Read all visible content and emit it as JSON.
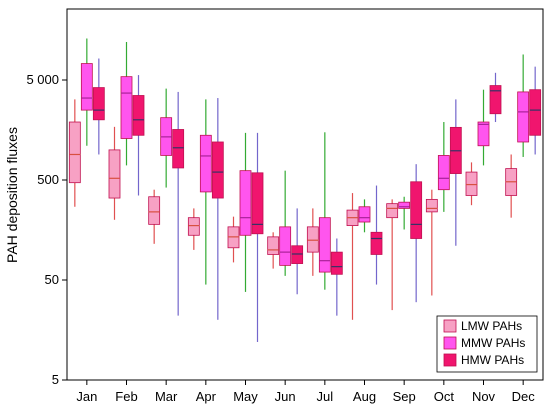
{
  "chart_data": {
    "type": "boxplot",
    "title": "",
    "xlabel": "",
    "ylabel": "PAH deposition fluxes",
    "yscale": "log",
    "ylim": [
      5,
      20000
    ],
    "yticks": [
      5,
      50,
      500,
      5000
    ],
    "ytick_labels": [
      "5",
      "50",
      "500",
      "5 000"
    ],
    "categories": [
      "Jan",
      "Feb",
      "Mar",
      "Apr",
      "May",
      "Jun",
      "Jul",
      "Aug",
      "Sep",
      "Oct",
      "Nov",
      "Dec"
    ],
    "legend": {
      "position": "bottom-right"
    },
    "series": [
      {
        "name": "LMW PAHs",
        "fill": "#f7a1c4",
        "whisker_color": "#e05050",
        "median_color": "#d85040",
        "boxes": [
          {
            "min": 270,
            "q1": 470,
            "median": 900,
            "q3": 1900,
            "max": 3200
          },
          {
            "min": 200,
            "q1": 330,
            "median": 520,
            "q3": 1000,
            "max": 1700
          },
          {
            "min": 115,
            "q1": 180,
            "median": 240,
            "q3": 340,
            "max": 400
          },
          {
            "min": 100,
            "q1": 140,
            "median": 175,
            "q3": 210,
            "max": 260
          },
          {
            "min": 75,
            "q1": 105,
            "median": 135,
            "q3": 170,
            "max": 215
          },
          {
            "min": 65,
            "q1": 90,
            "median": 100,
            "q3": 135,
            "max": 150
          },
          {
            "min": 55,
            "q1": 95,
            "median": 125,
            "q3": 170,
            "max": 260
          },
          {
            "min": 20,
            "q1": 175,
            "median": 210,
            "q3": 250,
            "max": 370
          },
          {
            "min": 25,
            "q1": 210,
            "median": 260,
            "q3": 290,
            "max": 320
          },
          {
            "min": 35,
            "q1": 240,
            "median": 260,
            "q3": 320,
            "max": 400
          },
          {
            "min": 280,
            "q1": 350,
            "median": 450,
            "q3": 600,
            "max": 750
          },
          {
            "min": 210,
            "q1": 350,
            "median": 480,
            "q3": 650,
            "max": 900
          }
        ]
      },
      {
        "name": "MMW PAHs",
        "fill": "#ff55ee",
        "whisker_color": "#33aa33",
        "median_color": "#aa2299",
        "boxes": [
          {
            "min": 1100,
            "q1": 2500,
            "median": 3300,
            "q3": 7300,
            "max": 13000
          },
          {
            "min": 700,
            "q1": 1300,
            "median": 3700,
            "q3": 5400,
            "max": 12000
          },
          {
            "min": 420,
            "q1": 880,
            "median": 1350,
            "q3": 2100,
            "max": 4100
          },
          {
            "min": 45,
            "q1": 380,
            "median": 870,
            "q3": 1400,
            "max": 3200
          },
          {
            "min": 38,
            "q1": 140,
            "median": 210,
            "q3": 620,
            "max": 1480
          },
          {
            "min": 55,
            "q1": 70,
            "median": 95,
            "q3": 170,
            "max": 620
          },
          {
            "min": 40,
            "q1": 60,
            "median": 78,
            "q3": 210,
            "max": 1500
          },
          {
            "min": 150,
            "q1": 190,
            "median": 210,
            "q3": 270,
            "max": 320
          },
          {
            "min": 160,
            "q1": 260,
            "median": 270,
            "q3": 300,
            "max": 340
          },
          {
            "min": 240,
            "q1": 400,
            "median": 520,
            "q3": 880,
            "max": 1900
          },
          {
            "min": 700,
            "q1": 1100,
            "median": 1800,
            "q3": 1900,
            "max": 4000
          },
          {
            "min": 850,
            "q1": 1200,
            "median": 2400,
            "q3": 3800,
            "max": 9000
          }
        ]
      },
      {
        "name": "HMW PAHs",
        "fill": "#f0156e",
        "whisker_color": "#7366cc",
        "median_color": "#333366",
        "boxes": [
          {
            "min": 900,
            "q1": 2000,
            "median": 2500,
            "q3": 4200,
            "max": 8200
          },
          {
            "min": 350,
            "q1": 1400,
            "median": 2000,
            "q3": 3500,
            "max": 5600
          },
          {
            "min": 22,
            "q1": 660,
            "median": 1050,
            "q3": 1600,
            "max": 3800
          },
          {
            "min": 20,
            "q1": 330,
            "median": 600,
            "q3": 1200,
            "max": 3300
          },
          {
            "min": 12,
            "q1": 145,
            "median": 180,
            "q3": 590,
            "max": 1480
          },
          {
            "min": 36,
            "q1": 73,
            "median": 91,
            "q3": 110,
            "max": 260
          },
          {
            "min": 22,
            "q1": 57,
            "median": 68,
            "q3": 95,
            "max": 130
          },
          {
            "min": 45,
            "q1": 90,
            "median": 130,
            "q3": 150,
            "max": 440
          },
          {
            "min": 30,
            "q1": 130,
            "median": 180,
            "q3": 480,
            "max": 720
          },
          {
            "min": 110,
            "q1": 580,
            "median": 980,
            "q3": 1680,
            "max": 3200
          },
          {
            "min": 1900,
            "q1": 2300,
            "median": 3900,
            "q3": 4400,
            "max": 5900
          },
          {
            "min": 900,
            "q1": 1400,
            "median": 2500,
            "q3": 4000,
            "max": 6800
          }
        ]
      }
    ]
  }
}
